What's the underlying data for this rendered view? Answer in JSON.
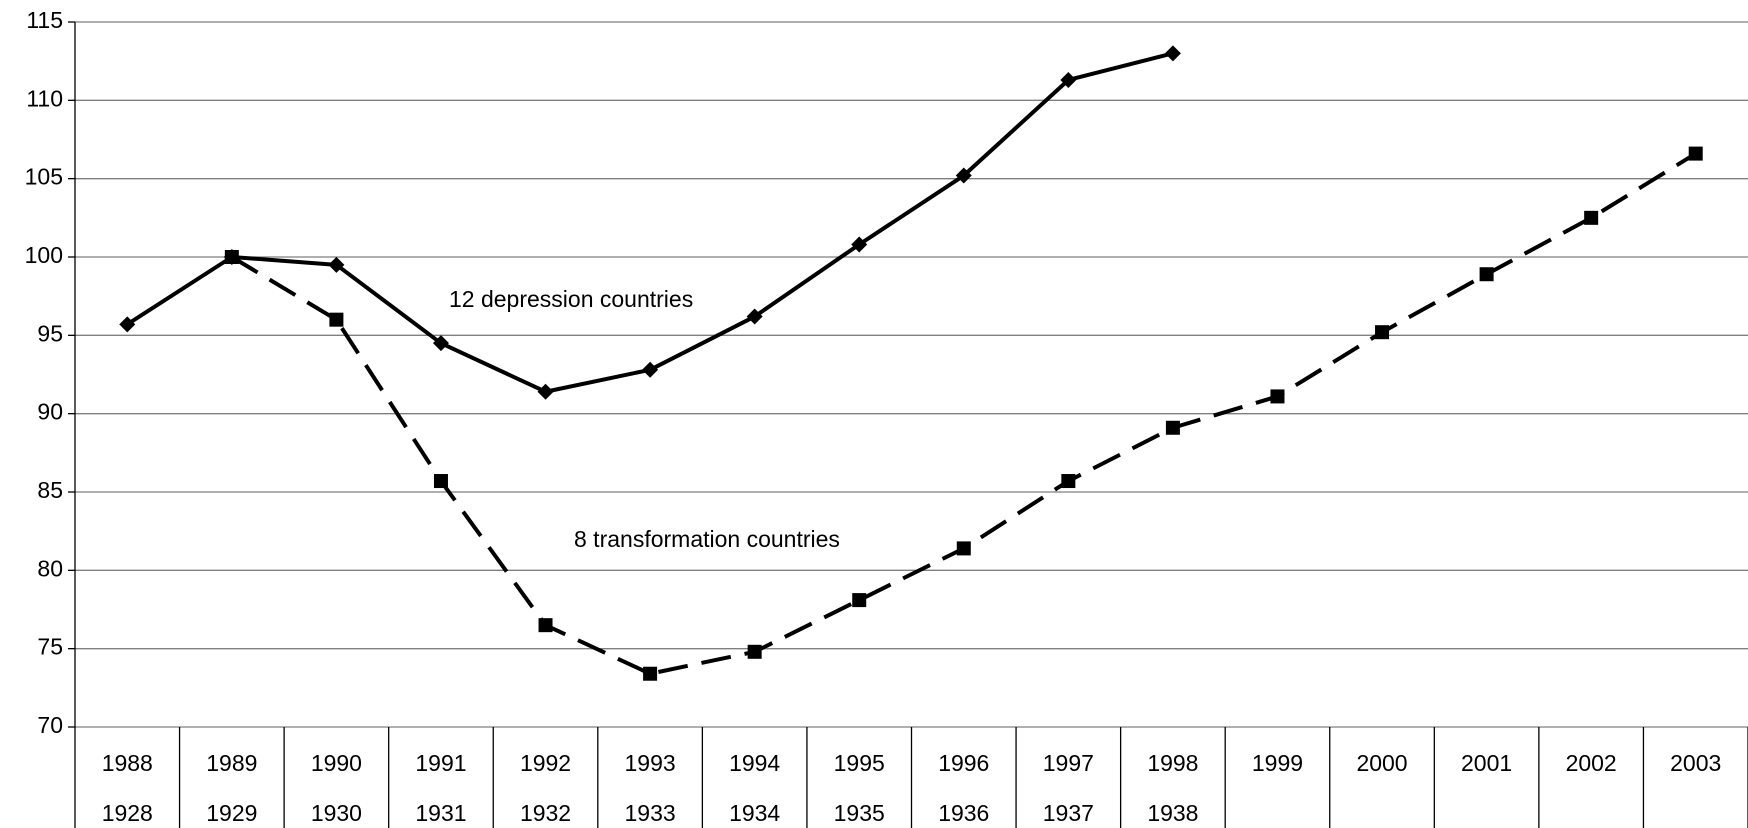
{
  "chart_data": {
    "type": "line",
    "categories": [
      "1988",
      "1989",
      "1990",
      "1991",
      "1992",
      "1993",
      "1994",
      "1995",
      "1996",
      "1997",
      "1998",
      "1999",
      "2000",
      "2001",
      "2002",
      "2003"
    ],
    "categories_lower": [
      "1928",
      "1929",
      "1930",
      "1931",
      "1932",
      "1933",
      "1934",
      "1935",
      "1936",
      "1937",
      "1938",
      null,
      null,
      null,
      null,
      null
    ],
    "series": [
      {
        "name": "12 depression countries",
        "color": "#000000",
        "marker": "diamond",
        "dashed": false,
        "values": [
          95.7,
          100,
          99.5,
          94.5,
          91.4,
          92.8,
          96.2,
          100.8,
          105.2,
          111.3,
          113,
          null,
          null,
          null,
          null,
          null
        ]
      },
      {
        "name": "8 transformation countries",
        "color": "#000000",
        "marker": "square",
        "dashed": true,
        "values": [
          null,
          100,
          96,
          85.7,
          76.5,
          73.4,
          74.8,
          78.1,
          81.4,
          85.7,
          89.1,
          91.1,
          95.2,
          98.9,
          102.5,
          106.6
        ]
      }
    ],
    "ylim": [
      70,
      115
    ],
    "yticks": [
      70,
      75,
      80,
      85,
      90,
      95,
      100,
      105,
      110,
      115
    ],
    "grid": true
  }
}
